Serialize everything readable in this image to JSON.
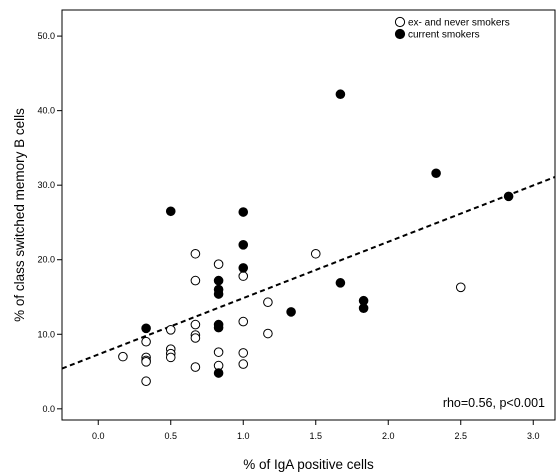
{
  "chart_data": {
    "type": "scatter",
    "title": "",
    "xlabel": "% of IgA positive cells",
    "ylabel": "% of class switched memory B cells",
    "xlim": [
      -0.25,
      3.15
    ],
    "ylim": [
      -1.5,
      53.5
    ],
    "x_ticks": [
      0.0,
      0.5,
      1.0,
      1.5,
      2.0,
      2.5,
      3.0
    ],
    "x_tick_labels": [
      "0.0",
      "0.5",
      "1.0",
      "1.5",
      "2.0",
      "2.5",
      "3.0"
    ],
    "y_ticks": [
      0.0,
      10.0,
      20.0,
      30.0,
      40.0,
      50.0
    ],
    "y_tick_labels": [
      "0.0",
      "10.0",
      "20.0",
      "30.0",
      "40.0",
      "50.0"
    ],
    "grid": false,
    "legend_position": "top-right",
    "series": [
      {
        "name": "ex- and never smokers",
        "marker": "open-circle",
        "color": "#000000",
        "points": [
          [
            0.17,
            7.0
          ],
          [
            0.33,
            9.0
          ],
          [
            0.33,
            6.9
          ],
          [
            0.33,
            6.5
          ],
          [
            0.33,
            6.3
          ],
          [
            0.33,
            3.7
          ],
          [
            0.5,
            10.6
          ],
          [
            0.5,
            8.0
          ],
          [
            0.5,
            7.4
          ],
          [
            0.5,
            6.9
          ],
          [
            0.67,
            20.8
          ],
          [
            0.67,
            17.2
          ],
          [
            0.67,
            11.3
          ],
          [
            0.67,
            9.9
          ],
          [
            0.67,
            9.5
          ],
          [
            0.67,
            5.6
          ],
          [
            0.83,
            19.4
          ],
          [
            0.83,
            7.6
          ],
          [
            0.83,
            5.8
          ],
          [
            1.0,
            17.8
          ],
          [
            1.0,
            11.7
          ],
          [
            1.0,
            7.5
          ],
          [
            1.0,
            6.0
          ],
          [
            1.17,
            14.3
          ],
          [
            1.17,
            10.1
          ],
          [
            1.5,
            20.8
          ],
          [
            2.5,
            16.3
          ]
        ]
      },
      {
        "name": "current smokers",
        "marker": "filled-circle",
        "color": "#000000",
        "points": [
          [
            0.33,
            10.8
          ],
          [
            0.5,
            26.5
          ],
          [
            0.83,
            17.2
          ],
          [
            0.83,
            16.0
          ],
          [
            0.83,
            15.4
          ],
          [
            0.83,
            11.3
          ],
          [
            0.83,
            10.9
          ],
          [
            0.83,
            4.8
          ],
          [
            1.0,
            26.4
          ],
          [
            1.0,
            22.0
          ],
          [
            1.0,
            18.9
          ],
          [
            1.33,
            13.0
          ],
          [
            1.67,
            42.2
          ],
          [
            1.67,
            16.9
          ],
          [
            1.83,
            14.5
          ],
          [
            1.83,
            13.5
          ],
          [
            2.33,
            31.6
          ],
          [
            2.83,
            28.5
          ]
        ]
      }
    ],
    "trend_line": {
      "style": "dashed",
      "x": [
        -0.25,
        3.15
      ],
      "y": [
        5.4,
        31.1
      ]
    },
    "annotations": [
      {
        "text": "rho=0.56, p<0.001",
        "position": "bottom-right"
      }
    ]
  }
}
